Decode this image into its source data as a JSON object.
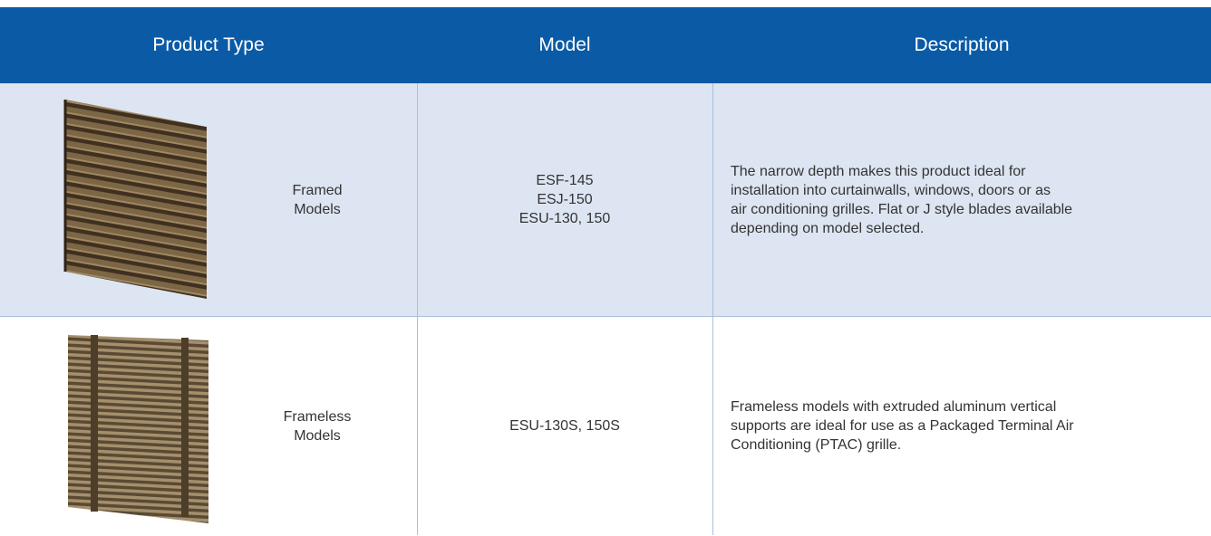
{
  "table": {
    "header": [
      "Product Type",
      "Model",
      "Description"
    ],
    "rows": [
      {
        "product_type": [
          "Framed",
          "Models"
        ],
        "model": [
          "ESF-145",
          "ESJ-150",
          "ESU-130, 150"
        ],
        "description": [
          "The narrow depth makes this product ideal for",
          "installation into curtainwalls, windows, doors or as",
          "air conditioning grilles. Flat or J style blades available",
          "depending on model selected."
        ]
      },
      {
        "product_type": [
          "Frameless",
          "Models"
        ],
        "model": [
          "ESU-130S, 150S"
        ],
        "description": [
          "Frameless models with extruded aluminum vertical",
          "supports are ideal for use as a Packaged Terminal Air",
          "Conditioning (PTAC) grille."
        ]
      }
    ]
  }
}
